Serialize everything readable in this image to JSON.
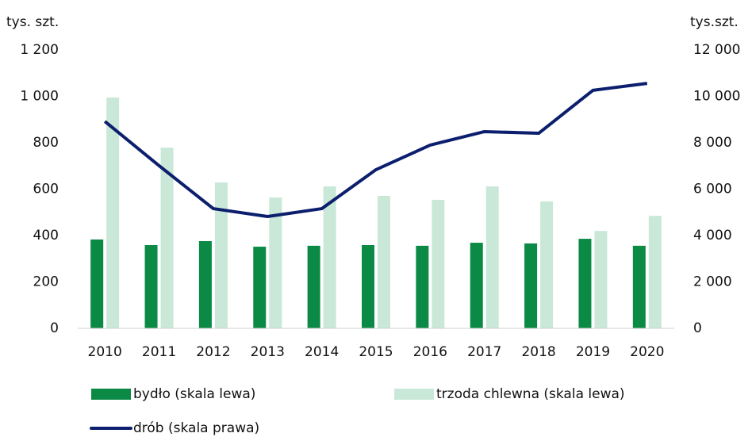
{
  "chart_data": {
    "type": "bar_line",
    "y_label": "tys. szt.",
    "y2_label": "tys.szt.",
    "categories": [
      "2010",
      "2011",
      "2012",
      "2013",
      "2014",
      "2015",
      "2016",
      "2017",
      "2018",
      "2019",
      "2020"
    ],
    "series": [
      {
        "name": "bydło (skala lewa)",
        "color": "#0b8a45",
        "kind": "bar",
        "values": [
          383,
          359,
          376,
          352,
          356,
          359,
          356,
          369,
          366,
          386,
          356
        ]
      },
      {
        "name": "trzoda chlewna (skala lewa)",
        "color": "#c9e8d8",
        "kind": "bar",
        "values": [
          995,
          779,
          629,
          564,
          612,
          571,
          554,
          612,
          547,
          420,
          485
        ]
      },
      {
        "name": "drób (skala prawa)",
        "color": "#0c1f6e",
        "kind": "line",
        "axis": "y2",
        "values": [
          8920,
          7010,
          5160,
          4820,
          5160,
          6840,
          7900,
          8480,
          8410,
          10260,
          10560
        ]
      }
    ],
    "ylim": [
      0,
      1200
    ],
    "yticks": [
      0,
      200,
      400,
      600,
      800,
      {
        "value": 1000,
        "label": "1 000"
      },
      {
        "value": 1200,
        "label": "1 200"
      }
    ],
    "y2lim": [
      0,
      12000
    ],
    "y2ticks": [
      0,
      {
        "value": 2000,
        "label": "2 000"
      },
      {
        "value": 4000,
        "label": "4 000"
      },
      {
        "value": 6000,
        "label": "6 000"
      },
      {
        "value": 8000,
        "label": "8 000"
      },
      {
        "value": 10000,
        "label": "10 000"
      },
      {
        "value": 12000,
        "label": "12 000"
      }
    ],
    "grid": false
  }
}
